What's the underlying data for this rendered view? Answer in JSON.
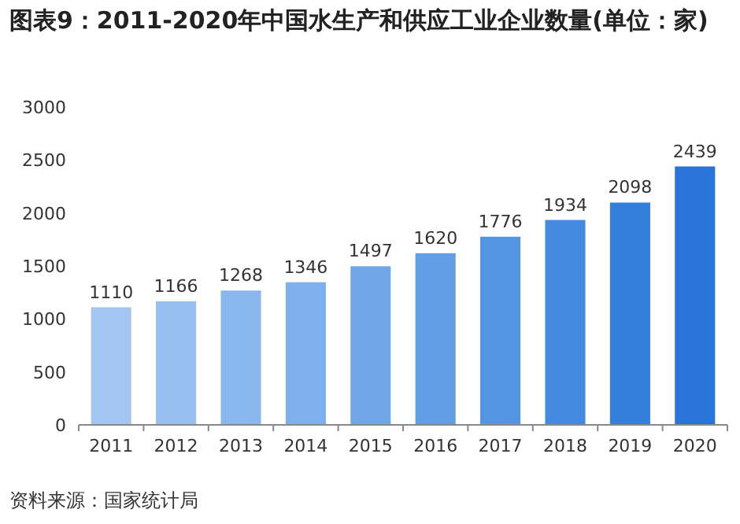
{
  "chart_data": {
    "type": "bar",
    "title": "图表9：2011-2020年中国水生产和供应工业企业数量(单位：家)",
    "categories": [
      "2011",
      "2012",
      "2013",
      "2014",
      "2015",
      "2016",
      "2017",
      "2018",
      "2019",
      "2020"
    ],
    "values": [
      1110,
      1166,
      1268,
      1346,
      1497,
      1620,
      1776,
      1934,
      2098,
      2439
    ],
    "colors": [
      "#a3c6f0",
      "#97bff0",
      "#8ab7ee",
      "#7db0ec",
      "#6fa7ea",
      "#619ee6",
      "#5394e3",
      "#448ae0",
      "#357fdc",
      "#2874d8"
    ],
    "ylim": [
      0,
      3000
    ],
    "yticks": [
      0,
      500,
      1000,
      1500,
      2000,
      2500,
      3000
    ],
    "data_labels": true,
    "annotations": [
      "资料来源：国家统计局"
    ]
  }
}
